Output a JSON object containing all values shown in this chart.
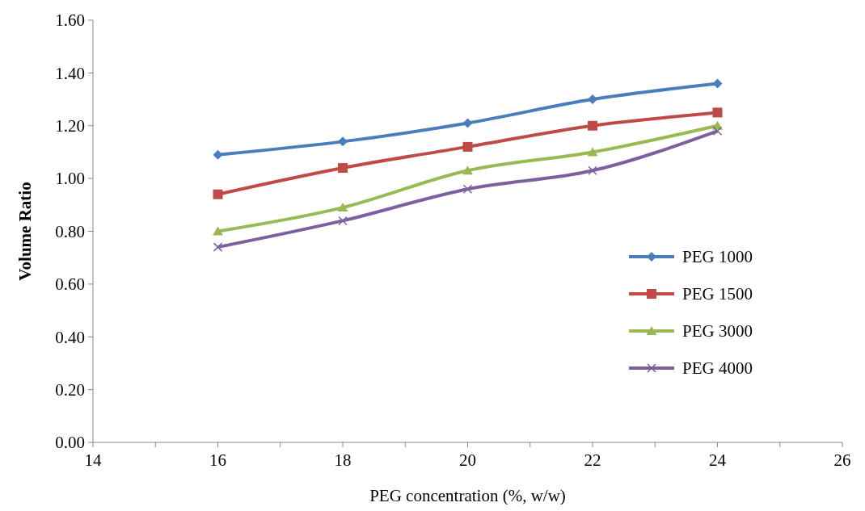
{
  "chart_data": {
    "type": "line",
    "xlabel": "PEG concentration (%, w/w)",
    "ylabel": "Volume Ratio",
    "x": [
      16,
      18,
      20,
      22,
      24
    ],
    "series": [
      {
        "name": "PEG 1000",
        "color": "#4a7ebb",
        "marker": "diamond",
        "values": [
          1.09,
          1.14,
          1.21,
          1.3,
          1.36
        ]
      },
      {
        "name": "PEG 1500",
        "color": "#be4b48",
        "marker": "square",
        "values": [
          0.94,
          1.04,
          1.12,
          1.2,
          1.25
        ]
      },
      {
        "name": "PEG 3000",
        "color": "#98b954",
        "marker": "triangle",
        "values": [
          0.8,
          0.89,
          1.03,
          1.1,
          1.2
        ]
      },
      {
        "name": "PEG 4000",
        "color": "#7d60a0",
        "marker": "cross",
        "values": [
          0.74,
          0.84,
          0.96,
          1.03,
          1.18
        ]
      }
    ],
    "xlim": [
      14,
      26
    ],
    "xticks": [
      14,
      {
        "value": 15,
        "label": null
      },
      16,
      {
        "value": 17,
        "label": null
      },
      18,
      {
        "value": 19,
        "label": null
      },
      20,
      {
        "value": 21,
        "label": null
      },
      22,
      {
        "value": 23,
        "label": null
      },
      24,
      {
        "value": 25,
        "label": null
      },
      26
    ],
    "ylim": [
      0,
      1.6
    ],
    "yticks": [
      {
        "value": 0,
        "label": "0.00"
      },
      {
        "value": 0.2,
        "label": "0.20"
      },
      {
        "value": 0.4,
        "label": "0.40"
      },
      {
        "value": 0.6,
        "label": "0.60"
      },
      {
        "value": 0.8,
        "label": "0.80"
      },
      {
        "value": 1.0,
        "label": "1.00"
      },
      {
        "value": 1.2,
        "label": "1.20"
      },
      {
        "value": 1.4,
        "label": "1.40"
      },
      {
        "value": 1.6,
        "label": "1.60"
      }
    ],
    "legend": "bottom right",
    "line_style": "solid"
  }
}
